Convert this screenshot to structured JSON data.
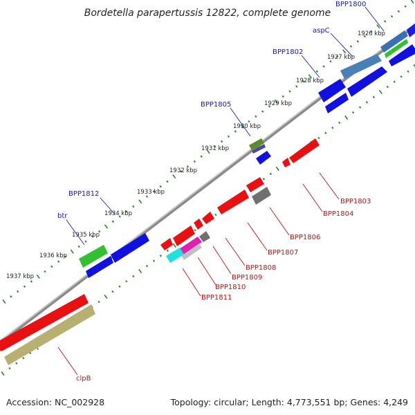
{
  "title": "Bordetella parapertussis 12822, complete genome",
  "footer": {
    "accession": "Accession: NC_002928",
    "stats": "Topology: circular; Length: 4,773,551 bp; Genes: 4,249"
  },
  "kbp_labels": [
    "1926 kbp",
    "1927 kbp",
    "1928 kbp",
    "1929 kbp",
    "1930 kbp",
    "1931 kbp",
    "1932 kbp",
    "1933 kbp",
    "1934 kbp",
    "1935 kbp",
    "1936 kbp",
    "1937 kbp"
  ],
  "top_gene_labels": [
    "BPP1800",
    "aspC",
    "BPP1802",
    "BPP1805",
    "BPP1812",
    "btr"
  ],
  "bottom_gene_labels": [
    "BPP1803",
    "BPP1804",
    "BPP1806",
    "BPP1807",
    "BPP1808",
    "BPP1809",
    "BPP1810",
    "BPP1811",
    "clpB"
  ],
  "colors": {
    "forward_gene": "#1010e0",
    "reverse_gene": "#e81010",
    "tick": "#1f8a1f",
    "backbone": "#888888",
    "highlight_green": "#30c030",
    "highlight_steel": "#4a7ab0",
    "highlight_olive": "#b8b070",
    "highlight_olive_small": "#5a8a2a",
    "highlight_cyan": "#20e0e0",
    "highlight_magenta": "#e020b0",
    "highlight_gray": "#707070"
  }
}
